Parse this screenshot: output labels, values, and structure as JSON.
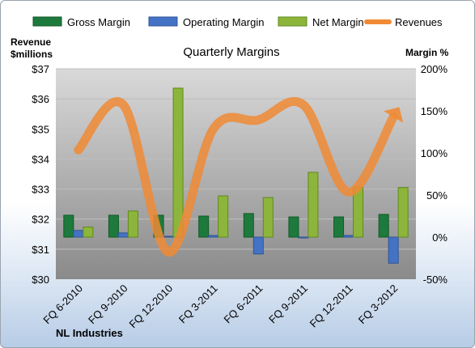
{
  "chart_data": {
    "type": "bar",
    "title": "Quarterly Margins",
    "company": "NL Industries",
    "categories": [
      "FQ 6-2010",
      "FQ 9-2010",
      "FQ 12-2010",
      "FQ 3-2011",
      "FQ 6-2011",
      "FQ 9-2011",
      "FQ 12-2011",
      "FQ 3-2012"
    ],
    "series": [
      {
        "name": "Gross Margin",
        "axis": "right",
        "kind": "bar",
        "color": "#1e7a3c",
        "values": [
          26,
          26,
          26,
          25,
          28,
          24,
          24,
          27
        ]
      },
      {
        "name": "Operating Margin",
        "axis": "right",
        "kind": "bar",
        "color": "#4472c4",
        "values": [
          8,
          5,
          1,
          2,
          -20,
          0,
          2,
          -31
        ]
      },
      {
        "name": "Net Margin",
        "axis": "right",
        "kind": "bar",
        "color": "#8db53b",
        "values": [
          12,
          31,
          177,
          49,
          47,
          77,
          59,
          59
        ]
      },
      {
        "name": "Revenues",
        "axis": "left",
        "kind": "line",
        "color": "#f08a35",
        "values": [
          34.3,
          35.8,
          30.9,
          35.0,
          35.3,
          35.8,
          32.9,
          35.4
        ]
      }
    ],
    "y_left": {
      "label_lines": [
        "Revenue",
        "$millions"
      ],
      "min": 30,
      "max": 37,
      "ticks": [
        "$30",
        "$31",
        "$32",
        "$33",
        "$34",
        "$35",
        "$36",
        "$37"
      ]
    },
    "y_right": {
      "label": "Margin %",
      "min": -50,
      "max": 200,
      "ticks": [
        "-50%",
        "0%",
        "50%",
        "100%",
        "150%",
        "200%"
      ]
    },
    "legend": [
      "Gross Margin",
      "Operating Margin",
      "Net Margin",
      "Revenues"
    ],
    "legend_position": "top",
    "grid": true
  }
}
